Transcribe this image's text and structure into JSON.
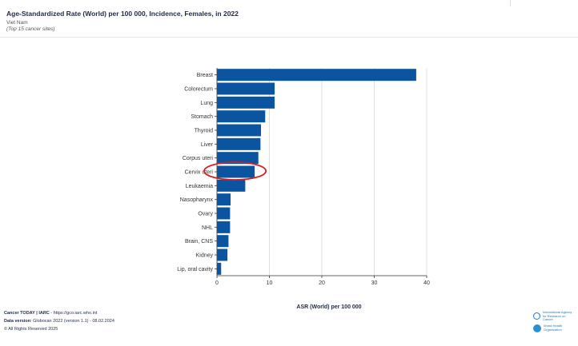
{
  "header": {
    "title": "Age-Standardized Rate (World) per 100 000, Incidence, Females, in 2022",
    "subtitle": "Viet Nam",
    "note": "(Top 15 cancer sites)"
  },
  "chart_data": {
    "type": "bar",
    "orientation": "horizontal",
    "categories": [
      "Breast",
      "Colorectum",
      "Lung",
      "Stomach",
      "Thyroid",
      "Liver",
      "Corpus uteri",
      "Cervix uteri",
      "Leukaemia",
      "Nasopharynx",
      "Ovary",
      "NHL",
      "Brain, CNS",
      "Kidney",
      "Lip, oral cavity"
    ],
    "values": [
      38.0,
      11.0,
      11.0,
      9.2,
      8.4,
      8.3,
      7.9,
      7.2,
      5.4,
      2.6,
      2.5,
      2.5,
      2.2,
      2.0,
      0.8
    ],
    "xlabel": "ASR (World) per 100 000",
    "ylabel": "",
    "xlim": [
      0,
      40
    ],
    "xticks": [
      0,
      10,
      20,
      30,
      40
    ],
    "grid": true,
    "bar_color": "#0b54a0",
    "highlight": {
      "category": "Cervix uteri",
      "shape": "ellipse",
      "color": "#d81e1e"
    }
  },
  "footer": {
    "line1_bold": "Cancer TODAY | IARC",
    "line1_rest": " - https://gco.iarc.who.int",
    "line2_bold": "Data version",
    "line2_rest": ": Globocan 2022 (version 1.1) - 08.02.2024",
    "line3": "© All Rights Reserved 2025"
  },
  "logos": {
    "iarc": [
      "International Agency",
      "for Research on Cancer"
    ],
    "who": [
      "World Health",
      "Organization"
    ],
    "iarc_color": "#2277c6",
    "who_color": "#2b8fd6"
  }
}
